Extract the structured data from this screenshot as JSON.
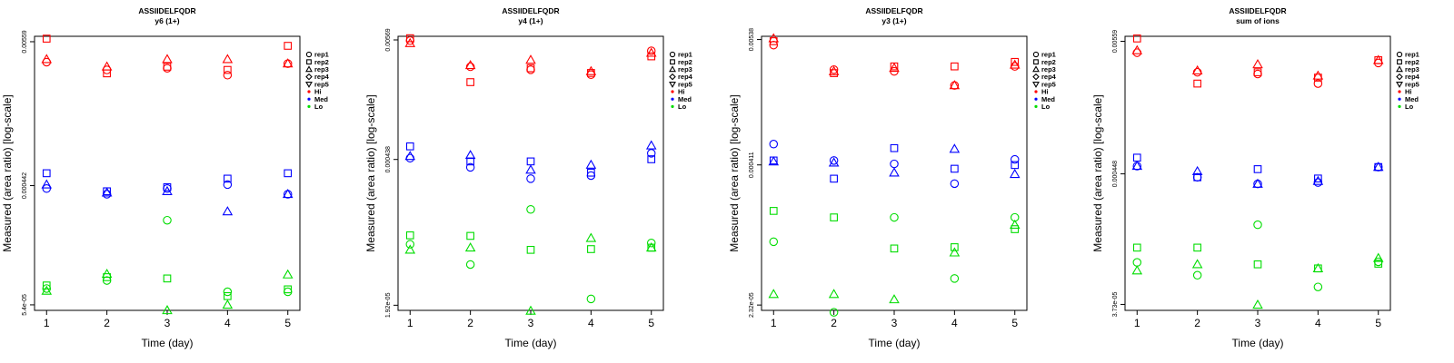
{
  "figure": {
    "xlabel": "Time (day)",
    "ylabel": "Measured (area ratio) [log-scale]"
  },
  "legend": [
    {
      "label": "rep1",
      "symbol": "circle-icon"
    },
    {
      "label": "rep2",
      "symbol": "square-icon"
    },
    {
      "label": "rep3",
      "symbol": "triangle-up-icon"
    },
    {
      "label": "rep4",
      "symbol": "diamond-icon"
    },
    {
      "label": "rep5",
      "symbol": "triangle-down-icon"
    },
    {
      "label": "Hi",
      "symbol": "dot-icon",
      "color": "#ff0000"
    },
    {
      "label": "Med",
      "symbol": "dot-icon",
      "color": "#0000ff"
    },
    {
      "label": "Lo",
      "symbol": "dot-icon",
      "color": "#00dd00"
    }
  ],
  "colors": {
    "Hi": "#ff0000",
    "Med": "#0000ff",
    "Lo": "#00dd00"
  },
  "chart_data": [
    {
      "type": "scatter",
      "title": "ASSIIDELFQDR",
      "subtitle": "y6 (1+)",
      "xlabel": "Time (day)",
      "ylabel": "Measured (area ratio) [log-scale]",
      "x_ticks": [
        1,
        2,
        3,
        4,
        5
      ],
      "xlim": [
        0.8,
        5.2
      ],
      "y_scale": "log",
      "y_ticks": [
        "5.4e-05",
        "0.000442",
        "0.00559"
      ],
      "ylim": [
        4.9e-05,
        0.00615
      ],
      "series": [
        {
          "group": "Hi",
          "rep": "rep1",
          "x": [
            1,
            2,
            3,
            4,
            5
          ],
          "y": [
            0.0039,
            0.0034,
            0.0035,
            0.0031,
            0.0038
          ]
        },
        {
          "group": "Hi",
          "rep": "rep2",
          "x": [
            1,
            2,
            3,
            4,
            5
          ],
          "y": [
            0.0059,
            0.0032,
            0.0036,
            0.0034,
            0.0052
          ]
        },
        {
          "group": "Hi",
          "rep": "rep3",
          "x": [
            1,
            2,
            3,
            4,
            5
          ],
          "y": [
            0.0041,
            0.0036,
            0.0041,
            0.0041,
            0.0038
          ]
        },
        {
          "group": "Med",
          "rep": "rep1",
          "x": [
            1,
            2,
            3,
            4,
            5
          ],
          "y": [
            0.00042,
            0.00038,
            0.00042,
            0.00045,
            0.00038
          ]
        },
        {
          "group": "Med",
          "rep": "rep2",
          "x": [
            1,
            2,
            3,
            4,
            5
          ],
          "y": [
            0.00055,
            0.0004,
            0.00043,
            0.0005,
            0.00055
          ]
        },
        {
          "group": "Med",
          "rep": "rep3",
          "x": [
            1,
            2,
            3,
            4,
            5
          ],
          "y": [
            0.00045,
            0.00039,
            0.0004,
            0.00028,
            0.00038
          ]
        },
        {
          "group": "Lo",
          "rep": "rep1",
          "x": [
            1,
            2,
            3,
            4,
            5
          ],
          "y": [
            7.2e-05,
            8.3e-05,
            0.00024,
            6.8e-05,
            6.8e-05
          ]
        },
        {
          "group": "Lo",
          "rep": "rep2",
          "x": [
            1,
            2,
            3,
            4,
            5
          ],
          "y": [
            7.6e-05,
            8.8e-05,
            8.6e-05,
            6.3e-05,
            7.1e-05
          ]
        },
        {
          "group": "Lo",
          "rep": "rep3",
          "x": [
            1,
            2,
            3,
            4,
            5
          ],
          "y": [
            6.9e-05,
            9.3e-05,
            4.9e-05,
            5.4e-05,
            9.2e-05
          ]
        }
      ]
    },
    {
      "type": "scatter",
      "title": "ASSIIDELFQDR",
      "subtitle": "y4 (1+)",
      "xlabel": "Time (day)",
      "ylabel": "Measured (area ratio) [log-scale]",
      "x_ticks": [
        1,
        2,
        3,
        4,
        5
      ],
      "xlim": [
        0.8,
        5.2
      ],
      "y_scale": "log",
      "y_ticks": [
        "1.92e-05",
        "0.000438",
        "0.00569"
      ],
      "ylim": [
        1.72e-05,
        0.00615
      ],
      "series": [
        {
          "group": "Hi",
          "rep": "rep1",
          "x": [
            1,
            2,
            3,
            4,
            5
          ],
          "y": [
            0.0056,
            0.0032,
            0.003,
            0.0027,
            0.0045
          ]
        },
        {
          "group": "Hi",
          "rep": "rep2",
          "x": [
            1,
            2,
            3,
            4,
            5
          ],
          "y": [
            0.0059,
            0.0023,
            0.0031,
            0.0028,
            0.004
          ]
        },
        {
          "group": "Hi",
          "rep": "rep3",
          "x": [
            1,
            2,
            3,
            4,
            5
          ],
          "y": [
            0.0053,
            0.0033,
            0.0037,
            0.0029,
            0.0043
          ]
        },
        {
          "group": "Med",
          "rep": "rep1",
          "x": [
            1,
            2,
            3,
            4,
            5
          ],
          "y": [
            0.00045,
            0.00037,
            0.00029,
            0.00031,
            0.0005
          ]
        },
        {
          "group": "Med",
          "rep": "rep2",
          "x": [
            1,
            2,
            3,
            4,
            5
          ],
          "y": [
            0.00058,
            0.00042,
            0.00042,
            0.00033,
            0.00044
          ]
        },
        {
          "group": "Med",
          "rep": "rep3",
          "x": [
            1,
            2,
            3,
            4,
            5
          ],
          "y": [
            0.00047,
            0.00048,
            0.00035,
            0.00039,
            0.00059
          ]
        },
        {
          "group": "Lo",
          "rep": "rep1",
          "x": [
            1,
            2,
            3,
            4,
            5
          ],
          "y": [
            7.1e-05,
            4.6e-05,
            0.00015,
            2.2e-05,
            7.3e-05
          ]
        },
        {
          "group": "Lo",
          "rep": "rep2",
          "x": [
            1,
            2,
            3,
            4,
            5
          ],
          "y": [
            8.6e-05,
            8.5e-05,
            6.3e-05,
            6.4e-05,
            6.6e-05
          ]
        },
        {
          "group": "Lo",
          "rep": "rep3",
          "x": [
            1,
            2,
            3,
            4,
            5
          ],
          "y": [
            6.3e-05,
            6.6e-05,
            1.7e-05,
            8.1e-05,
            6.6e-05
          ]
        }
      ]
    },
    {
      "type": "scatter",
      "title": "ASSIIDELFQDR",
      "subtitle": "y3 (1+)",
      "xlabel": "Time (day)",
      "ylabel": "Measured (area ratio) [log-scale]",
      "x_ticks": [
        1,
        2,
        3,
        4,
        5
      ],
      "xlim": [
        0.8,
        5.2
      ],
      "y_scale": "log",
      "y_ticks": [
        "2.32e-05",
        "0.000411",
        "0.00538"
      ],
      "ylim": [
        2.08e-05,
        0.00575
      ],
      "series": [
        {
          "group": "Hi",
          "rep": "rep1",
          "x": [
            1,
            2,
            3,
            4,
            5
          ],
          "y": [
            0.0048,
            0.0029,
            0.0028,
            0.0021,
            0.0031
          ]
        },
        {
          "group": "Hi",
          "rep": "rep2",
          "x": [
            1,
            2,
            3,
            4,
            5
          ],
          "y": [
            0.0052,
            0.0027,
            0.0031,
            0.0031,
            0.0034
          ]
        },
        {
          "group": "Hi",
          "rep": "rep3",
          "x": [
            1,
            2,
            3,
            4,
            5
          ],
          "y": [
            0.0055,
            0.0028,
            0.003,
            0.0021,
            0.0032
          ]
        },
        {
          "group": "Med",
          "rep": "rep1",
          "x": [
            1,
            2,
            3,
            4,
            5
          ],
          "y": [
            0.00063,
            0.00045,
            0.00042,
            0.00028,
            0.00046
          ]
        },
        {
          "group": "Med",
          "rep": "rep2",
          "x": [
            1,
            2,
            3,
            4,
            5
          ],
          "y": [
            0.00045,
            0.00031,
            0.00058,
            0.00038,
            0.00041
          ]
        },
        {
          "group": "Med",
          "rep": "rep3",
          "x": [
            1,
            2,
            3,
            4,
            5
          ],
          "y": [
            0.00044,
            0.00043,
            0.00035,
            0.00057,
            0.00034
          ]
        },
        {
          "group": "Lo",
          "rep": "rep1",
          "x": [
            1,
            2,
            3,
            4,
            5
          ],
          "y": [
            8.5e-05,
            2e-05,
            0.00014,
            4e-05,
            0.00014
          ]
        },
        {
          "group": "Lo",
          "rep": "rep2",
          "x": [
            1,
            2,
            3,
            4,
            5
          ],
          "y": [
            0.00016,
            0.00014,
            7.4e-05,
            7.6e-05,
            0.00011
          ]
        },
        {
          "group": "Lo",
          "rep": "rep3",
          "x": [
            1,
            2,
            3,
            4,
            5
          ],
          "y": [
            2.9e-05,
            2.9e-05,
            2.6e-05,
            6.8e-05,
            0.00012
          ]
        }
      ]
    },
    {
      "type": "scatter",
      "title": "ASSIIDELFQDR",
      "subtitle": "sum of ions",
      "xlabel": "Time (day)",
      "ylabel": "Measured (area ratio) [log-scale]",
      "x_ticks": [
        1,
        2,
        3,
        4,
        5
      ],
      "xlim": [
        0.8,
        5.2
      ],
      "y_scale": "log",
      "y_ticks": [
        "3.73e-05",
        "0.000448",
        "0.00559"
      ],
      "ylim": [
        3.33e-05,
        0.00615
      ],
      "series": [
        {
          "group": "Hi",
          "rep": "rep1",
          "x": [
            1,
            2,
            3,
            4,
            5
          ],
          "y": [
            0.0045,
            0.0031,
            0.003,
            0.0025,
            0.0037
          ]
        },
        {
          "group": "Hi",
          "rep": "rep2",
          "x": [
            1,
            2,
            3,
            4,
            5
          ],
          "y": [
            0.0059,
            0.0025,
            0.0031,
            0.0028,
            0.0039
          ]
        },
        {
          "group": "Hi",
          "rep": "rep3",
          "x": [
            1,
            2,
            3,
            4,
            5
          ],
          "y": [
            0.0047,
            0.0032,
            0.0036,
            0.0029,
            0.0039
          ]
        },
        {
          "group": "Med",
          "rep": "rep1",
          "x": [
            1,
            2,
            3,
            4,
            5
          ],
          "y": [
            0.00052,
            0.00042,
            0.00037,
            0.00038,
            0.00051
          ]
        },
        {
          "group": "Med",
          "rep": "rep2",
          "x": [
            1,
            2,
            3,
            4,
            5
          ],
          "y": [
            0.00061,
            0.00042,
            0.00049,
            0.00041,
            0.00051
          ]
        },
        {
          "group": "Med",
          "rep": "rep3",
          "x": [
            1,
            2,
            3,
            4,
            5
          ],
          "y": [
            0.00052,
            0.00047,
            0.00037,
            0.00039,
            0.00051
          ]
        },
        {
          "group": "Lo",
          "rep": "rep1",
          "x": [
            1,
            2,
            3,
            4,
            5
          ],
          "y": [
            8.3e-05,
            6.5e-05,
            0.00017,
            5.2e-05,
            8.4e-05
          ]
        },
        {
          "group": "Lo",
          "rep": "rep2",
          "x": [
            1,
            2,
            3,
            4,
            5
          ],
          "y": [
            0.00011,
            0.00011,
            8e-05,
            7.4e-05,
            8.1e-05
          ]
        },
        {
          "group": "Lo",
          "rep": "rep3",
          "x": [
            1,
            2,
            3,
            4,
            5
          ],
          "y": [
            7.1e-05,
            8e-05,
            3.7e-05,
            7.4e-05,
            9e-05
          ]
        }
      ]
    }
  ]
}
